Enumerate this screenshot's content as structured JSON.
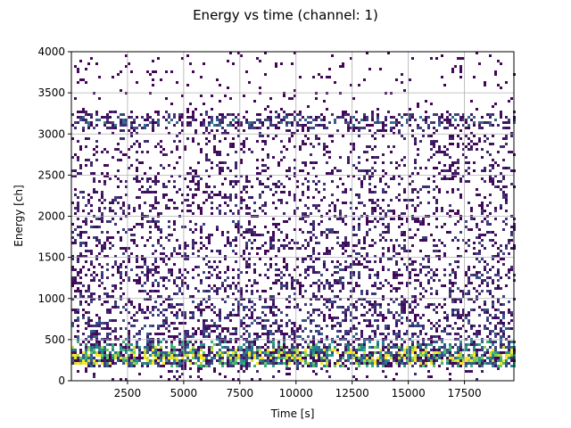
{
  "chart_data": {
    "type": "heatmap",
    "title": "Energy vs time (channel: 1)",
    "xlabel": "Time [s]",
    "ylabel": "Energy [ch]",
    "xlim": [
      0,
      19700
    ],
    "ylim": [
      0,
      4000
    ],
    "x_ticks": [
      2500,
      5000,
      7500,
      10000,
      12500,
      15000,
      17500
    ],
    "x_tick_labels": [
      "2500",
      "5000",
      "7500",
      "10000",
      "12500",
      "15000",
      "17500"
    ],
    "y_ticks": [
      0,
      500,
      1000,
      1500,
      2000,
      2500,
      3000,
      3500,
      4000
    ],
    "y_tick_labels": [
      "0",
      "500",
      "1000",
      "1500",
      "2000",
      "2500",
      "3000",
      "3500",
      "4000"
    ],
    "grid": true,
    "colormap": "viridis",
    "colormap_stops": [
      "#440154",
      "#3b528b",
      "#21918c",
      "#5ec962",
      "#fde725"
    ],
    "empty_color": "#ffffff",
    "density_profile": {
      "energy": [
        150,
        200,
        250,
        300,
        350,
        400,
        450,
        500,
        600,
        800,
        1000,
        1250,
        1500,
        1750,
        2000,
        2250,
        2500,
        2750,
        3000,
        3050,
        3100,
        3150,
        3200,
        3250,
        3300,
        3500,
        3750,
        4000
      ],
      "relative_density": [
        0.1,
        0.95,
        1.0,
        0.98,
        0.9,
        0.8,
        0.55,
        0.45,
        0.4,
        0.36,
        0.32,
        0.3,
        0.28,
        0.26,
        0.26,
        0.24,
        0.22,
        0.2,
        0.18,
        0.2,
        0.5,
        0.6,
        0.48,
        0.25,
        0.06,
        0.05,
        0.05,
        0.05
      ]
    }
  }
}
